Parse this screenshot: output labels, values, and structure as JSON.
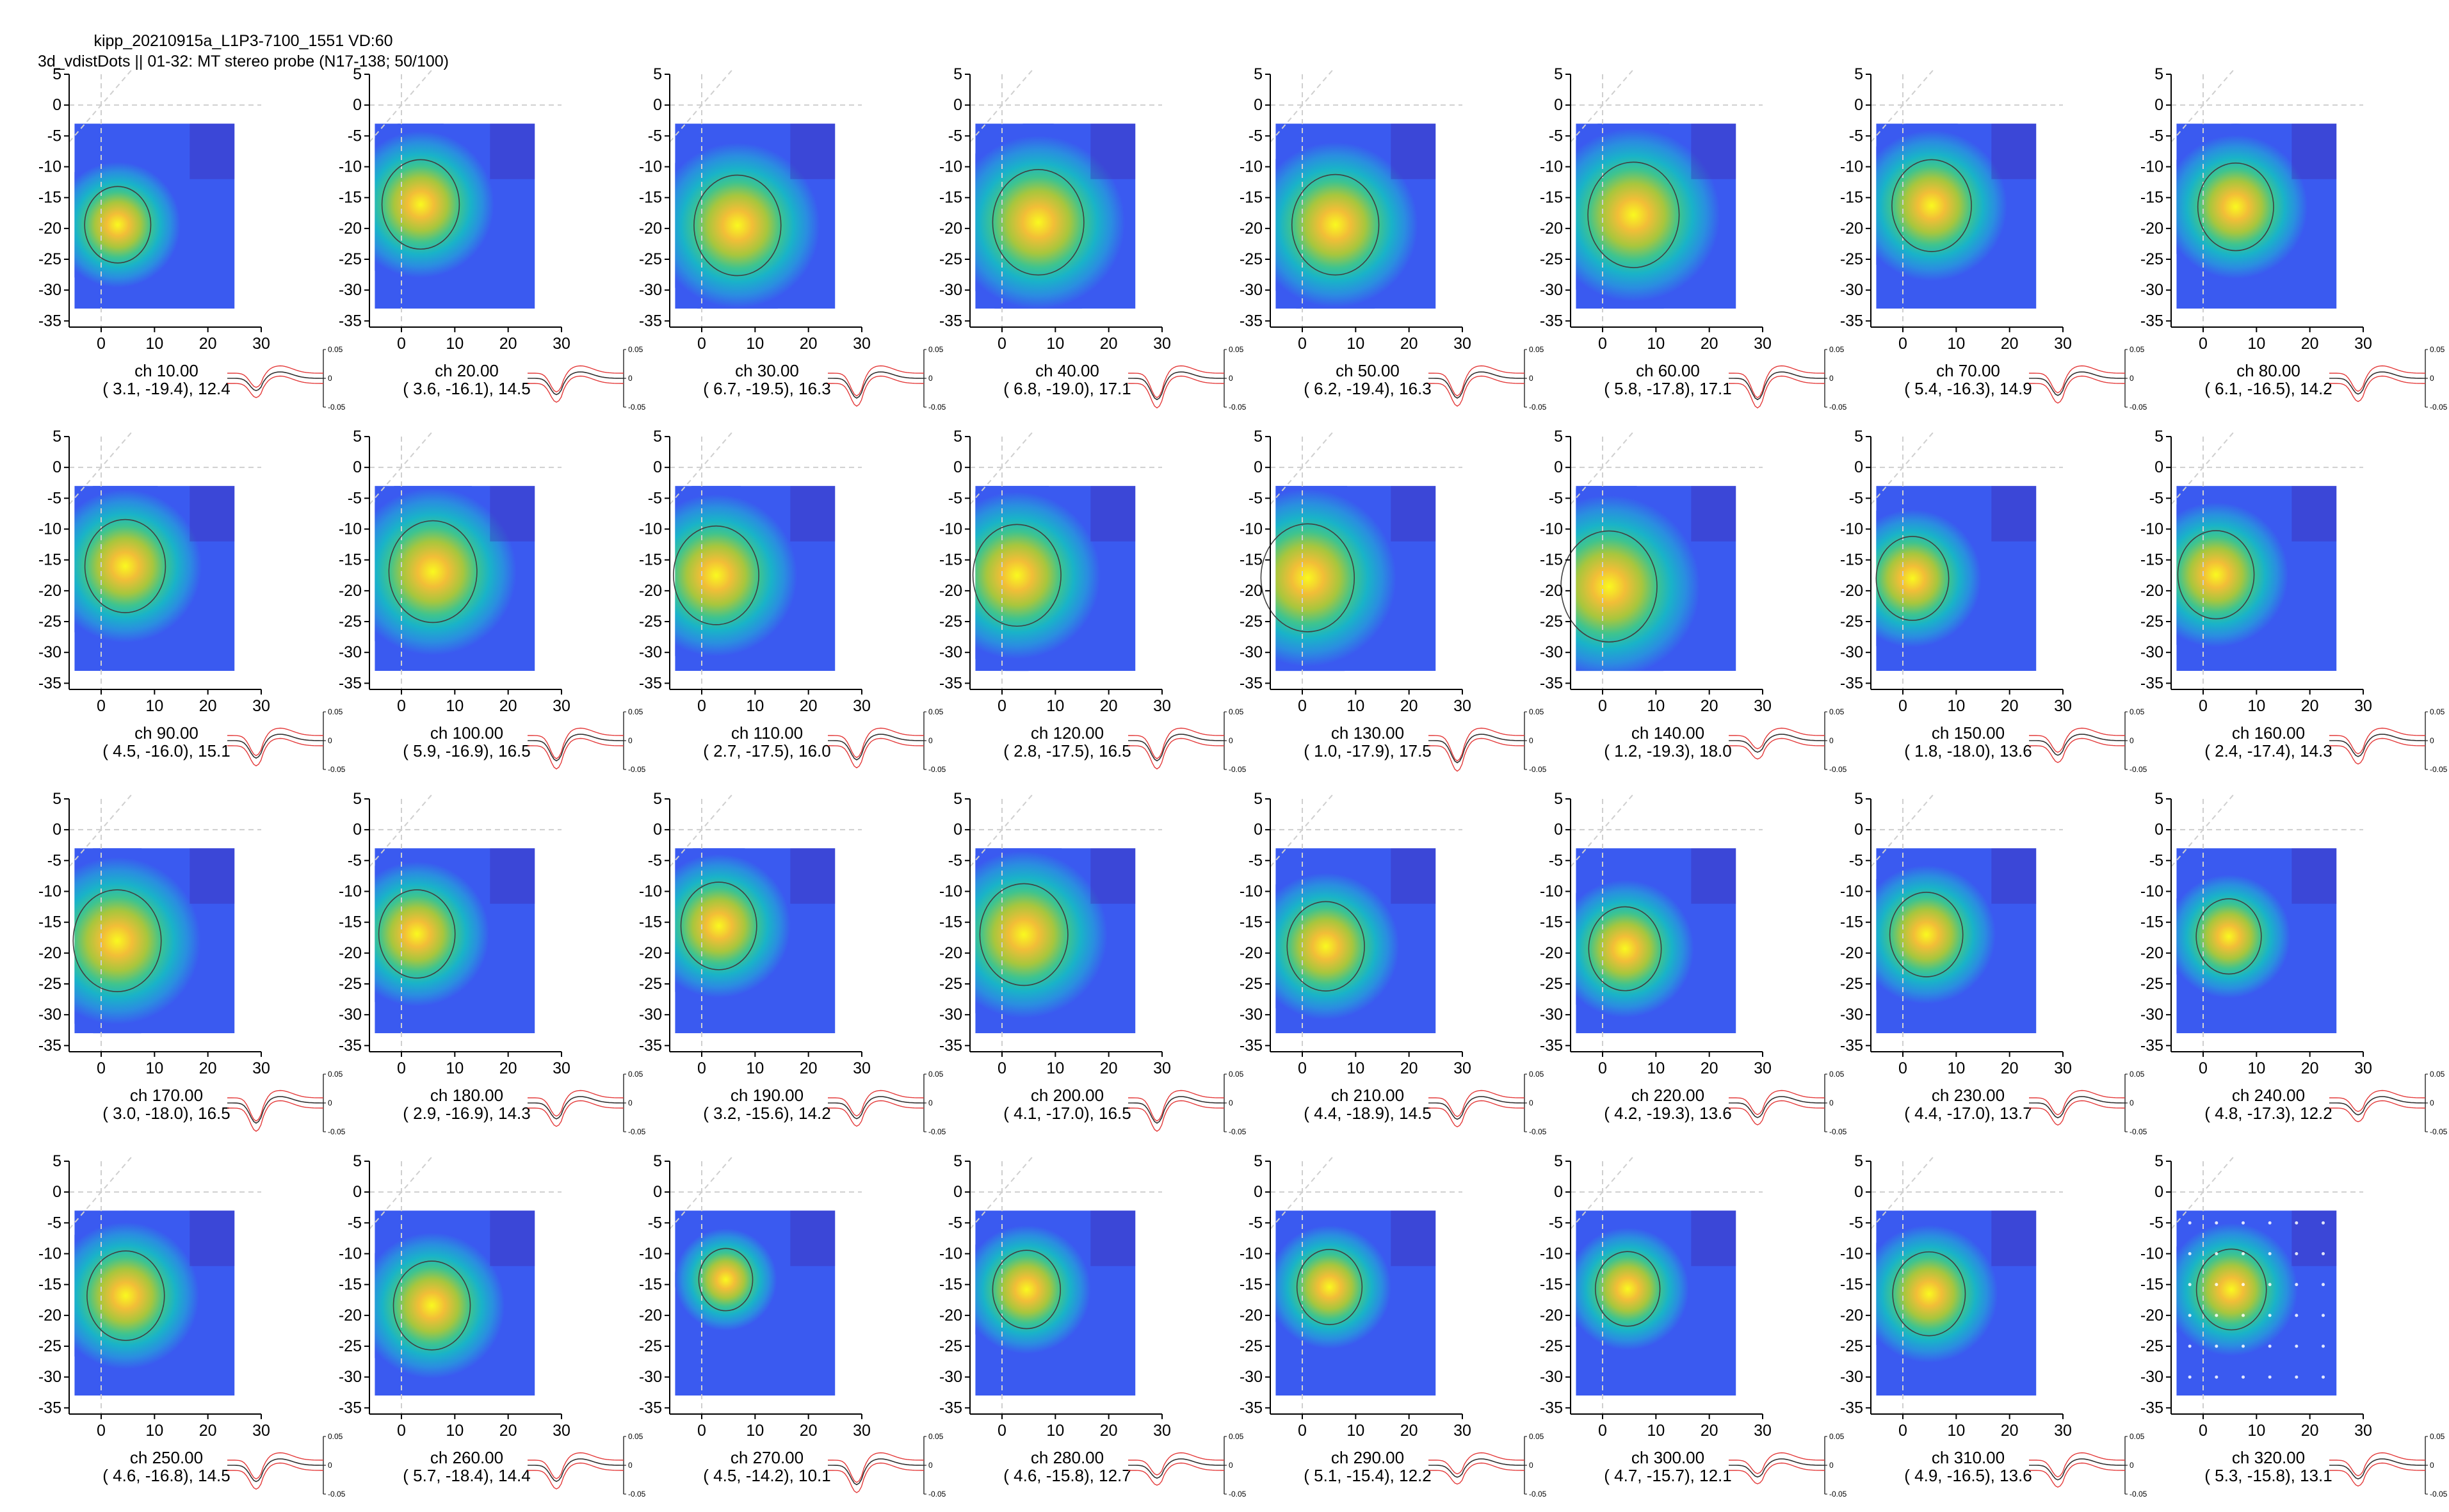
{
  "header": {
    "line1": "kipp_20210915a_L1P3-7100_1551  VD:60",
    "line2": "3d_vdistDots || 01-32:  MT stereo probe (N17-138; 50/100)"
  },
  "chart_data": {
    "type": "heatmap",
    "layout": "small-multiples 4 rows x 8 columns",
    "xlim": [
      -6,
      30
    ],
    "ylim": [
      -36,
      5
    ],
    "xticks": [
      0,
      10,
      20,
      30
    ],
    "yticks": [
      5,
      0,
      -5,
      -10,
      -15,
      -20,
      -25,
      -30,
      -35
    ],
    "xtick_labels": [
      "0",
      "10",
      "20",
      "30"
    ],
    "ytick_labels": [
      "5",
      "0",
      "-5",
      "-10",
      "-15",
      "-20",
      "-25",
      "-30",
      "-35"
    ],
    "map_extent": {
      "x": [
        -5,
        25
      ],
      "y": [
        -33,
        -3
      ]
    },
    "waveform_ytick_labels": [
      "0.05",
      "0",
      "-0.05"
    ],
    "colormap": [
      "#3e26a8",
      "#3a5af0",
      "#2a8ee0",
      "#19b3c8",
      "#3fc48e",
      "#a8c63d",
      "#f2be37",
      "#f9f91f"
    ],
    "guide_line_color": "#cfcfcf",
    "circle_color": "#404040",
    "waveform_colors": {
      "mean": "#303030",
      "error": "#e33a3a"
    },
    "panels": [
      {
        "ch": "ch 10.00",
        "stats": "( 3.1, -19.4), 12.4",
        "cx": 3.1,
        "cy": -19.4,
        "r": 6.2
      },
      {
        "ch": "ch 20.00",
        "stats": "( 3.6, -16.1), 14.5",
        "cx": 3.6,
        "cy": -16.1,
        "r": 7.25
      },
      {
        "ch": "ch 30.00",
        "stats": "( 6.7, -19.5), 16.3",
        "cx": 6.7,
        "cy": -19.5,
        "r": 8.15
      },
      {
        "ch": "ch 40.00",
        "stats": "( 6.8, -19.0), 17.1",
        "cx": 6.8,
        "cy": -19.0,
        "r": 8.55
      },
      {
        "ch": "ch 50.00",
        "stats": "( 6.2, -19.4), 16.3",
        "cx": 6.2,
        "cy": -19.4,
        "r": 8.15
      },
      {
        "ch": "ch 60.00",
        "stats": "( 5.8, -17.8), 17.1",
        "cx": 5.8,
        "cy": -17.8,
        "r": 8.55
      },
      {
        "ch": "ch 70.00",
        "stats": "( 5.4, -16.3), 14.9",
        "cx": 5.4,
        "cy": -16.3,
        "r": 7.45
      },
      {
        "ch": "ch 80.00",
        "stats": "( 6.1, -16.5), 14.2",
        "cx": 6.1,
        "cy": -16.5,
        "r": 7.1
      },
      {
        "ch": "ch 90.00",
        "stats": "( 4.5, -16.0), 15.1",
        "cx": 4.5,
        "cy": -16.0,
        "r": 7.55
      },
      {
        "ch": "ch 100.00",
        "stats": "( 5.9, -16.9), 16.5",
        "cx": 5.9,
        "cy": -16.9,
        "r": 8.25
      },
      {
        "ch": "ch 110.00",
        "stats": "( 2.7, -17.5), 16.0",
        "cx": 2.7,
        "cy": -17.5,
        "r": 8.0
      },
      {
        "ch": "ch 120.00",
        "stats": "( 2.8, -17.5), 16.5",
        "cx": 2.8,
        "cy": -17.5,
        "r": 8.25
      },
      {
        "ch": "ch 130.00",
        "stats": "( 1.0, -17.9), 17.5",
        "cx": 1.0,
        "cy": -17.9,
        "r": 8.75
      },
      {
        "ch": "ch 140.00",
        "stats": "( 1.2, -19.3), 18.0",
        "cx": 1.2,
        "cy": -19.3,
        "r": 9.0
      },
      {
        "ch": "ch 150.00",
        "stats": "( 1.8, -18.0), 13.6",
        "cx": 1.8,
        "cy": -18.0,
        "r": 6.8
      },
      {
        "ch": "ch 160.00",
        "stats": "( 2.4, -17.4), 14.3",
        "cx": 2.4,
        "cy": -17.4,
        "r": 7.15
      },
      {
        "ch": "ch 170.00",
        "stats": "( 3.0, -18.0), 16.5",
        "cx": 3.0,
        "cy": -18.0,
        "r": 8.25
      },
      {
        "ch": "ch 180.00",
        "stats": "( 2.9, -16.9), 14.3",
        "cx": 2.9,
        "cy": -16.9,
        "r": 7.15
      },
      {
        "ch": "ch 190.00",
        "stats": "( 3.2, -15.6), 14.2",
        "cx": 3.2,
        "cy": -15.6,
        "r": 7.1
      },
      {
        "ch": "ch 200.00",
        "stats": "( 4.1, -17.0), 16.5",
        "cx": 4.1,
        "cy": -17.0,
        "r": 8.25
      },
      {
        "ch": "ch 210.00",
        "stats": "( 4.4, -18.9), 14.5",
        "cx": 4.4,
        "cy": -18.9,
        "r": 7.25
      },
      {
        "ch": "ch 220.00",
        "stats": "( 4.2, -19.3), 13.6",
        "cx": 4.2,
        "cy": -19.3,
        "r": 6.8
      },
      {
        "ch": "ch 230.00",
        "stats": "( 4.4, -17.0), 13.7",
        "cx": 4.4,
        "cy": -17.0,
        "r": 6.85
      },
      {
        "ch": "ch 240.00",
        "stats": "( 4.8, -17.3), 12.2",
        "cx": 4.8,
        "cy": -17.3,
        "r": 6.1
      },
      {
        "ch": "ch 250.00",
        "stats": "( 4.6, -16.8), 14.5",
        "cx": 4.6,
        "cy": -16.8,
        "r": 7.25
      },
      {
        "ch": "ch 260.00",
        "stats": "( 5.7, -18.4), 14.4",
        "cx": 5.7,
        "cy": -18.4,
        "r": 7.2
      },
      {
        "ch": "ch 270.00",
        "stats": "( 4.5, -14.2), 10.1",
        "cx": 4.5,
        "cy": -14.2,
        "r": 5.05
      },
      {
        "ch": "ch 280.00",
        "stats": "( 4.6, -15.8), 12.7",
        "cx": 4.6,
        "cy": -15.8,
        "r": 6.35
      },
      {
        "ch": "ch 290.00",
        "stats": "( 5.1, -15.4), 12.2",
        "cx": 5.1,
        "cy": -15.4,
        "r": 6.1
      },
      {
        "ch": "ch 300.00",
        "stats": "( 4.7, -15.7), 12.1",
        "cx": 4.7,
        "cy": -15.7,
        "r": 6.05
      },
      {
        "ch": "ch 310.00",
        "stats": "( 4.9, -16.5), 13.6",
        "cx": 4.9,
        "cy": -16.5,
        "r": 6.8
      },
      {
        "ch": "ch 320.00",
        "stats": "( 5.3, -15.8), 13.1",
        "cx": 5.3,
        "cy": -15.8,
        "r": 6.55
      }
    ]
  }
}
